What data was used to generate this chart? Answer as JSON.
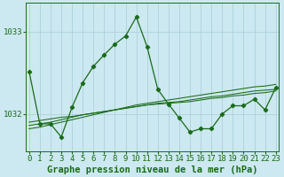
{
  "title": "Graphe pression niveau de la mer (hPa)",
  "hours": [
    0,
    1,
    2,
    3,
    4,
    5,
    6,
    7,
    8,
    9,
    10,
    11,
    12,
    13,
    14,
    15,
    16,
    17,
    18,
    19,
    20,
    21,
    22,
    23
  ],
  "yticks": [
    1032,
    1033
  ],
  "ylim": [
    1031.55,
    1033.35
  ],
  "xlim": [
    -0.3,
    23.3
  ],
  "bg_color": "#cce8f0",
  "grid_color": "#a8cdd8",
  "line_color": "#1a6b1a",
  "line_main": [
    1032.52,
    1031.88,
    1031.88,
    1031.72,
    1032.08,
    1032.38,
    1032.58,
    1032.72,
    1032.85,
    1032.95,
    1033.18,
    1032.82,
    1032.3,
    1032.12,
    1031.95,
    1031.78,
    1031.82,
    1031.82,
    1032.0,
    1032.1,
    1032.1,
    1032.18,
    1032.05,
    1032.32
  ],
  "line_smooth1": [
    1031.82,
    1031.84,
    1031.87,
    1031.9,
    1031.93,
    1031.96,
    1031.99,
    1032.02,
    1032.05,
    1032.08,
    1032.11,
    1032.13,
    1032.15,
    1032.17,
    1032.19,
    1032.21,
    1032.23,
    1032.25,
    1032.27,
    1032.29,
    1032.31,
    1032.33,
    1032.34,
    1032.36
  ],
  "line_smooth2": [
    1031.86,
    1031.88,
    1031.9,
    1031.93,
    1031.96,
    1031.99,
    1032.01,
    1032.03,
    1032.05,
    1032.07,
    1032.09,
    1032.11,
    1032.13,
    1032.14,
    1032.15,
    1032.17,
    1032.19,
    1032.21,
    1032.22,
    1032.24,
    1032.26,
    1032.28,
    1032.29,
    1032.3
  ],
  "line_smooth3": [
    1031.9,
    1031.92,
    1031.94,
    1031.96,
    1031.97,
    1031.99,
    1032.01,
    1032.03,
    1032.05,
    1032.07,
    1032.09,
    1032.11,
    1032.12,
    1032.13,
    1032.14,
    1032.15,
    1032.17,
    1032.19,
    1032.2,
    1032.22,
    1032.23,
    1032.25,
    1032.26,
    1032.28
  ],
  "font_family": "monospace",
  "tick_fontsize": 6.5,
  "label_fontsize": 7.5
}
